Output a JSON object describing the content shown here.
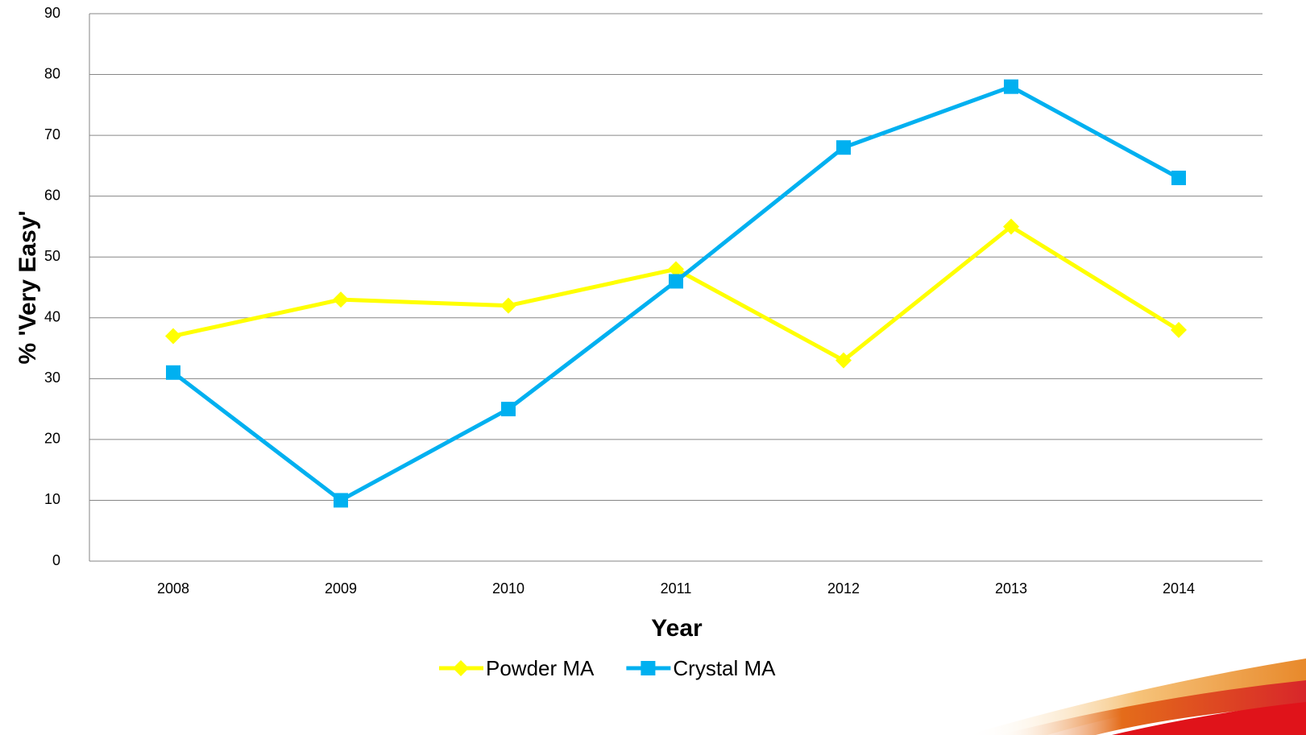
{
  "chart_data": {
    "type": "line",
    "x_label": "Year",
    "y_label": "% 'Very Easy'",
    "categories": [
      "2008",
      "2009",
      "2010",
      "2011",
      "2012",
      "2013",
      "2014"
    ],
    "series": [
      {
        "name": "Powder MA",
        "color": "#ffff00",
        "marker": "diamond",
        "values": [
          37,
          43,
          42,
          48,
          33,
          55,
          38
        ]
      },
      {
        "name": "Crystal MA",
        "color": "#00b0f0",
        "marker": "square",
        "values": [
          31,
          10,
          25,
          46,
          68,
          78,
          63
        ]
      }
    ],
    "ylim": [
      0,
      90
    ],
    "yticks": [
      0,
      10,
      20,
      30,
      40,
      50,
      60,
      70,
      80,
      90
    ],
    "grid": true,
    "legend": "bottom"
  }
}
